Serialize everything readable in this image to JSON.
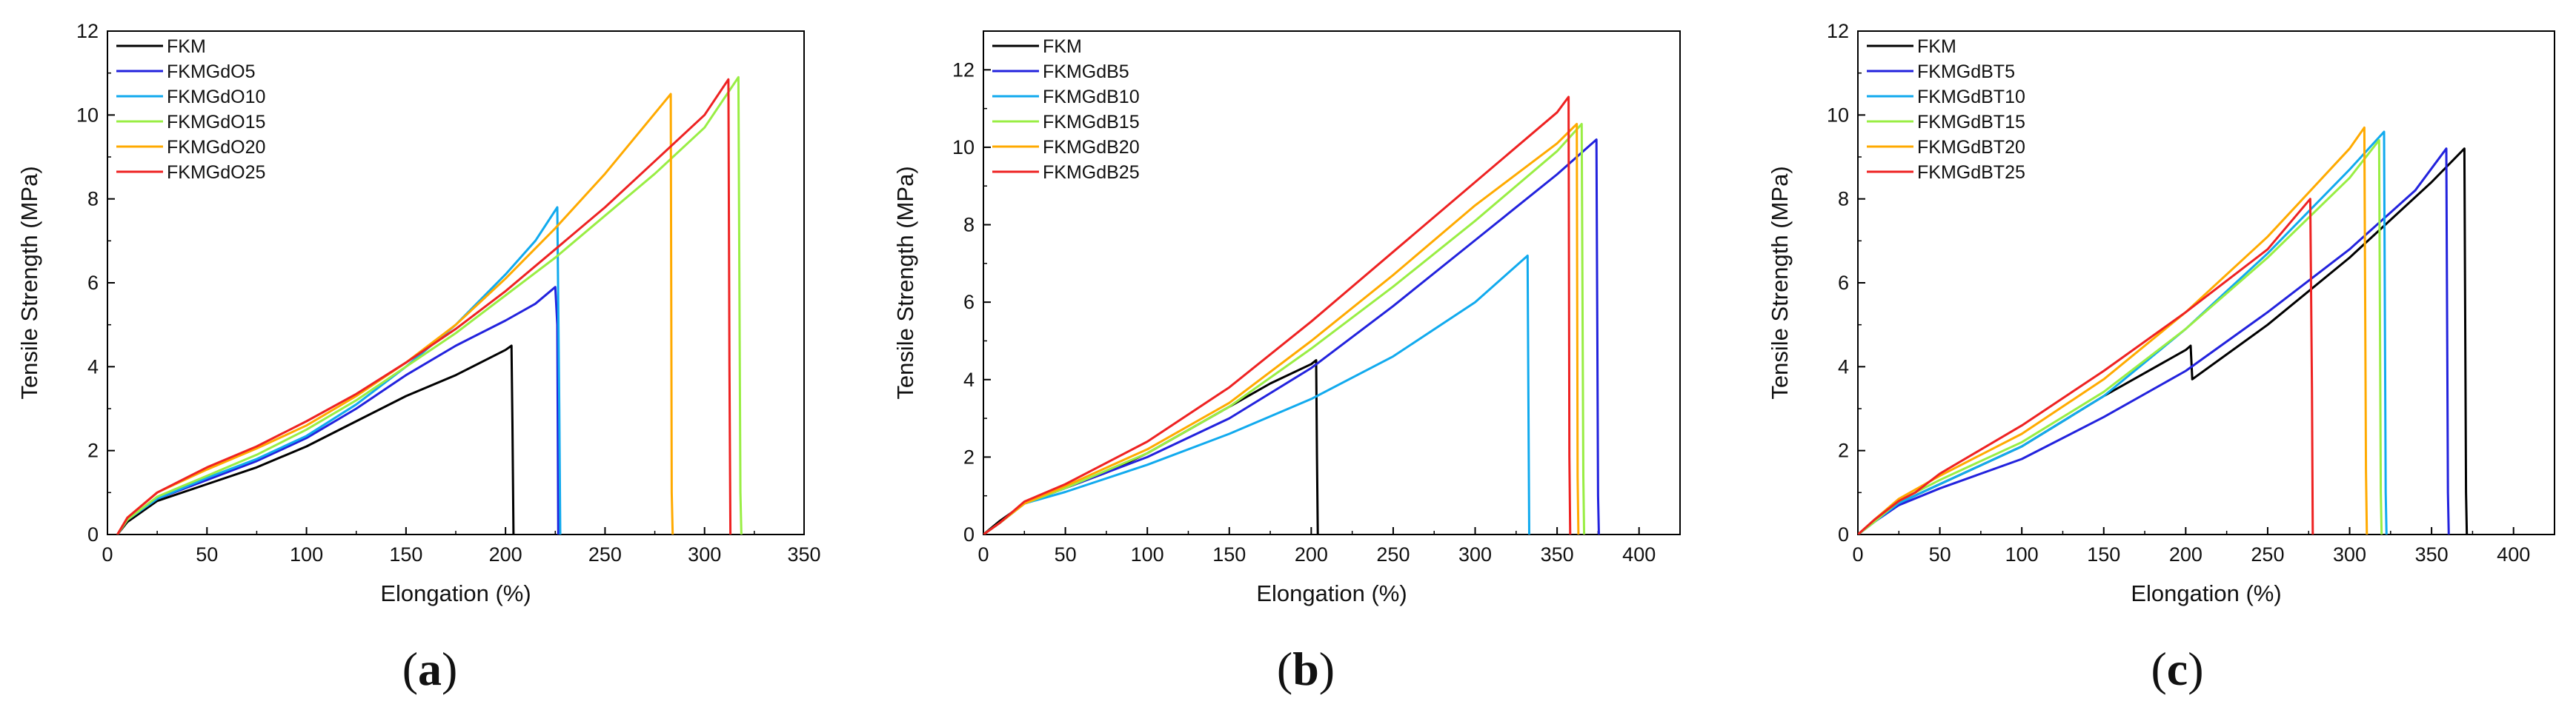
{
  "figure": {
    "panels": [
      "a",
      "b",
      "c"
    ]
  },
  "chart_data": [
    {
      "panel": "a",
      "caption_letter": "a",
      "type": "line",
      "title": "",
      "xlabel": "Elongation (%)",
      "ylabel": "Tensile Strength (MPa)",
      "xlim": [
        0,
        350
      ],
      "ylim": [
        0,
        12
      ],
      "xticks": [
        0,
        50,
        100,
        150,
        200,
        250,
        300,
        350
      ],
      "yticks": [
        0,
        2,
        4,
        6,
        8,
        10,
        12
      ],
      "legend_position": "top-left",
      "series": [
        {
          "name": "FKM",
          "color": "#000000",
          "x": [
            5,
            10,
            25,
            50,
            75,
            100,
            125,
            150,
            175,
            200,
            203,
            203.5,
            204
          ],
          "y": [
            0,
            0.3,
            0.8,
            1.2,
            1.6,
            2.1,
            2.7,
            3.3,
            3.8,
            4.4,
            4.5,
            2.6,
            0
          ]
        },
        {
          "name": "FKMGdO5",
          "color": "#2222dd",
          "x": [
            5,
            10,
            25,
            50,
            75,
            100,
            125,
            150,
            175,
            200,
            215,
            225,
            226,
            226.5
          ],
          "y": [
            0,
            0.35,
            0.85,
            1.3,
            1.75,
            2.3,
            3.0,
            3.8,
            4.5,
            5.1,
            5.5,
            5.9,
            5.0,
            0
          ]
        },
        {
          "name": "FKMGdO10",
          "color": "#11aaee",
          "x": [
            5,
            10,
            25,
            50,
            75,
            100,
            125,
            150,
            175,
            200,
            215,
            226,
            227,
            227.5
          ],
          "y": [
            0,
            0.35,
            0.85,
            1.35,
            1.8,
            2.35,
            3.1,
            4.0,
            5.0,
            6.2,
            7.0,
            7.8,
            3.0,
            0
          ]
        },
        {
          "name": "FKMGdO15",
          "color": "#99ee44",
          "x": [
            5,
            10,
            25,
            50,
            75,
            100,
            125,
            150,
            175,
            200,
            225,
            250,
            275,
            300,
            317,
            318,
            318.5
          ],
          "y": [
            0,
            0.35,
            0.9,
            1.4,
            1.9,
            2.5,
            3.2,
            4.0,
            4.8,
            5.7,
            6.6,
            7.6,
            8.6,
            9.7,
            10.9,
            1.0,
            0
          ]
        },
        {
          "name": "FKMGdO20",
          "color": "#ffaa00",
          "x": [
            5,
            10,
            25,
            50,
            75,
            100,
            125,
            150,
            175,
            200,
            225,
            250,
            283,
            283.5,
            284
          ],
          "y": [
            0,
            0.4,
            1.0,
            1.55,
            2.05,
            2.6,
            3.3,
            4.1,
            5.0,
            6.1,
            7.3,
            8.6,
            10.5,
            1.0,
            0
          ]
        },
        {
          "name": "FKMGdO25",
          "color": "#ee2222",
          "x": [
            5,
            10,
            25,
            50,
            75,
            100,
            125,
            150,
            175,
            200,
            225,
            250,
            275,
            300,
            312,
            312.5,
            313
          ],
          "y": [
            0,
            0.4,
            1.0,
            1.6,
            2.1,
            2.7,
            3.35,
            4.1,
            4.9,
            5.8,
            6.8,
            7.8,
            8.9,
            10.0,
            10.85,
            4.0,
            0
          ]
        }
      ]
    },
    {
      "panel": "b",
      "caption_letter": "b",
      "type": "line",
      "title": "",
      "xlabel": "Elongation (%)",
      "ylabel": "Tensile Strength (MPa)",
      "xlim": [
        0,
        425
      ],
      "ylim": [
        0,
        13
      ],
      "xticks": [
        0,
        50,
        100,
        150,
        200,
        250,
        300,
        350,
        400
      ],
      "yticks": [
        0,
        2,
        4,
        6,
        8,
        10,
        12
      ],
      "legend_position": "top-left",
      "series": [
        {
          "name": "FKM",
          "color": "#000000",
          "x": [
            0,
            10,
            25,
            50,
            75,
            100,
            125,
            150,
            175,
            200,
            203,
            203.5,
            204
          ],
          "y": [
            0,
            0.35,
            0.8,
            1.2,
            1.6,
            2.1,
            2.7,
            3.3,
            3.9,
            4.4,
            4.5,
            2.0,
            0
          ]
        },
        {
          "name": "FKMGdB5",
          "color": "#2222dd",
          "x": [
            0,
            10,
            25,
            50,
            100,
            150,
            200,
            250,
            300,
            350,
            374,
            375,
            375.5
          ],
          "y": [
            0,
            0.3,
            0.8,
            1.2,
            2.0,
            3.0,
            4.3,
            5.9,
            7.6,
            9.3,
            10.2,
            1.0,
            0
          ]
        },
        {
          "name": "FKMGdB10",
          "color": "#11aaee",
          "x": [
            0,
            10,
            25,
            50,
            100,
            150,
            200,
            250,
            300,
            332,
            332.5,
            333
          ],
          "y": [
            0,
            0.3,
            0.8,
            1.1,
            1.8,
            2.6,
            3.5,
            4.6,
            6.0,
            7.2,
            3.5,
            0
          ]
        },
        {
          "name": "FKMGdB15",
          "color": "#99ee44",
          "x": [
            0,
            10,
            25,
            50,
            100,
            150,
            200,
            250,
            300,
            350,
            365,
            366,
            366.5
          ],
          "y": [
            0,
            0.3,
            0.8,
            1.2,
            2.1,
            3.3,
            4.8,
            6.4,
            8.1,
            9.9,
            10.6,
            1.5,
            0
          ]
        },
        {
          "name": "FKMGdB20",
          "color": "#ffaa00",
          "x": [
            0,
            10,
            25,
            50,
            100,
            150,
            200,
            250,
            300,
            350,
            362,
            362.5,
            363
          ],
          "y": [
            0,
            0.3,
            0.8,
            1.25,
            2.2,
            3.4,
            5.0,
            6.7,
            8.5,
            10.1,
            10.6,
            1.5,
            0
          ]
        },
        {
          "name": "FKMGdB25",
          "color": "#ee2222",
          "x": [
            0,
            10,
            25,
            50,
            100,
            150,
            200,
            250,
            300,
            350,
            357,
            357.5,
            358
          ],
          "y": [
            0,
            0.3,
            0.85,
            1.3,
            2.4,
            3.8,
            5.5,
            7.3,
            9.1,
            10.9,
            11.3,
            2.0,
            0
          ]
        }
      ]
    },
    {
      "panel": "c",
      "caption_letter": "c",
      "type": "line",
      "title": "",
      "xlabel": "Elongation (%)",
      "ylabel": "Tensile Strength (MPa)",
      "xlim": [
        0,
        425
      ],
      "ylim": [
        0,
        12
      ],
      "xticks": [
        0,
        50,
        100,
        150,
        200,
        250,
        300,
        350,
        400
      ],
      "yticks": [
        0,
        2,
        4,
        6,
        8,
        10,
        12
      ],
      "legend_position": "top-left",
      "series": [
        {
          "name": "FKM",
          "color": "#000000",
          "x": [
            0,
            10,
            25,
            50,
            100,
            150,
            200,
            203,
            204,
            250,
            300,
            350,
            370,
            371,
            371.5
          ],
          "y": [
            0,
            0.3,
            0.75,
            1.2,
            2.1,
            3.3,
            4.4,
            4.5,
            3.7,
            5.0,
            6.6,
            8.4,
            9.2,
            1.0,
            0
          ]
        },
        {
          "name": "FKMGdBT5",
          "color": "#2222dd",
          "x": [
            0,
            10,
            25,
            50,
            100,
            150,
            200,
            250,
            300,
            340,
            359,
            360,
            360.5
          ],
          "y": [
            0,
            0.3,
            0.7,
            1.1,
            1.8,
            2.8,
            3.9,
            5.3,
            6.8,
            8.2,
            9.2,
            1.0,
            0
          ]
        },
        {
          "name": "FKMGdBT10",
          "color": "#11aaee",
          "x": [
            0,
            10,
            25,
            50,
            100,
            150,
            200,
            250,
            300,
            321,
            322,
            322.5
          ],
          "y": [
            0,
            0.3,
            0.75,
            1.2,
            2.1,
            3.3,
            4.9,
            6.7,
            8.7,
            9.6,
            1.0,
            0
          ]
        },
        {
          "name": "FKMGdBT15",
          "color": "#99ee44",
          "x": [
            0,
            10,
            25,
            50,
            100,
            150,
            200,
            250,
            300,
            318,
            319,
            319.5
          ],
          "y": [
            0,
            0.3,
            0.8,
            1.3,
            2.2,
            3.4,
            4.9,
            6.6,
            8.5,
            9.4,
            1.0,
            0
          ]
        },
        {
          "name": "FKMGdBT20",
          "color": "#ffaa00",
          "x": [
            0,
            10,
            25,
            50,
            100,
            150,
            200,
            250,
            300,
            309,
            310,
            310.5
          ],
          "y": [
            0,
            0.35,
            0.85,
            1.4,
            2.4,
            3.7,
            5.3,
            7.1,
            9.2,
            9.7,
            1.5,
            0
          ]
        },
        {
          "name": "FKMGdBT25",
          "color": "#ee2222",
          "x": [
            0,
            10,
            25,
            35,
            50,
            100,
            150,
            200,
            250,
            276,
            277,
            277.5
          ],
          "y": [
            0,
            0.35,
            0.8,
            1.0,
            1.45,
            2.6,
            3.9,
            5.3,
            6.8,
            8.0,
            3.5,
            0
          ]
        }
      ]
    }
  ]
}
